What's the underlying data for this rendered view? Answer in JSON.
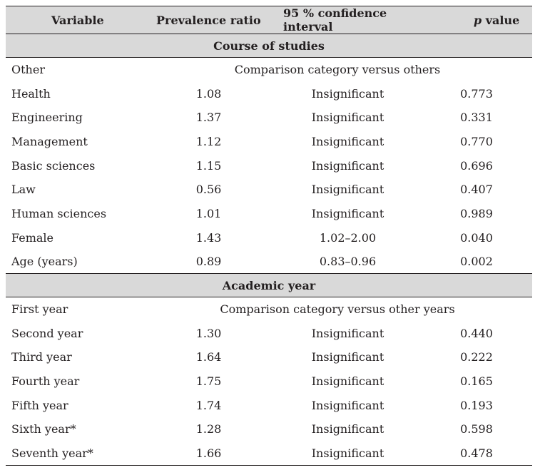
{
  "header": {
    "variable": "Variable",
    "prevalence_ratio": "Prevalence ratio",
    "ci": "95 % confidence interval",
    "p_value_italic": "p",
    "p_value_rest": " value"
  },
  "sections": [
    {
      "title": "Course of studies",
      "rows": [
        {
          "variable": "Other",
          "span": "Comparison category versus others"
        },
        {
          "variable": "Health",
          "pr": "1.08",
          "ci": "Insignificant",
          "p": "0.773"
        },
        {
          "variable": "Engineering",
          "pr": "1.37",
          "ci": "Insignificant",
          "p": "0.331"
        },
        {
          "variable": "Management",
          "pr": "1.12",
          "ci": "Insignificant",
          "p": "0.770"
        },
        {
          "variable": "Basic sciences",
          "pr": "1.15",
          "ci": "Insignificant",
          "p": "0.696"
        },
        {
          "variable": "Law",
          "pr": "0.56",
          "ci": "Insignificant",
          "p": "0.407"
        },
        {
          "variable": "Human sciences",
          "pr": "1.01",
          "ci": "Insignificant",
          "p": "0.989"
        },
        {
          "variable": "Female",
          "pr": "1.43",
          "ci": "1.02–2.00",
          "p": "0.040"
        },
        {
          "variable": "Age (years)",
          "pr": "0.89",
          "ci": "0.83–0.96",
          "p": "0.002"
        }
      ]
    },
    {
      "title": "Academic year",
      "rows": [
        {
          "variable": "First year",
          "span": "Comparison category versus other years"
        },
        {
          "variable": "Second year",
          "pr": "1.30",
          "ci": "Insignificant",
          "p": "0.440"
        },
        {
          "variable": "Third year",
          "pr": "1.64",
          "ci": "Insignificant",
          "p": "0.222"
        },
        {
          "variable": "Fourth year",
          "pr": "1.75",
          "ci": "Insignificant",
          "p": "0.165"
        },
        {
          "variable": "Fifth year",
          "pr": "1.74",
          "ci": "Insignificant",
          "p": "0.193"
        },
        {
          "variable": "Sixth year*",
          "pr": "1.28",
          "ci": "Insignificant",
          "p": "0.598"
        },
        {
          "variable": "Seventh year*",
          "pr": "1.66",
          "ci": "Insignificant",
          "p": "0.478"
        }
      ]
    }
  ]
}
